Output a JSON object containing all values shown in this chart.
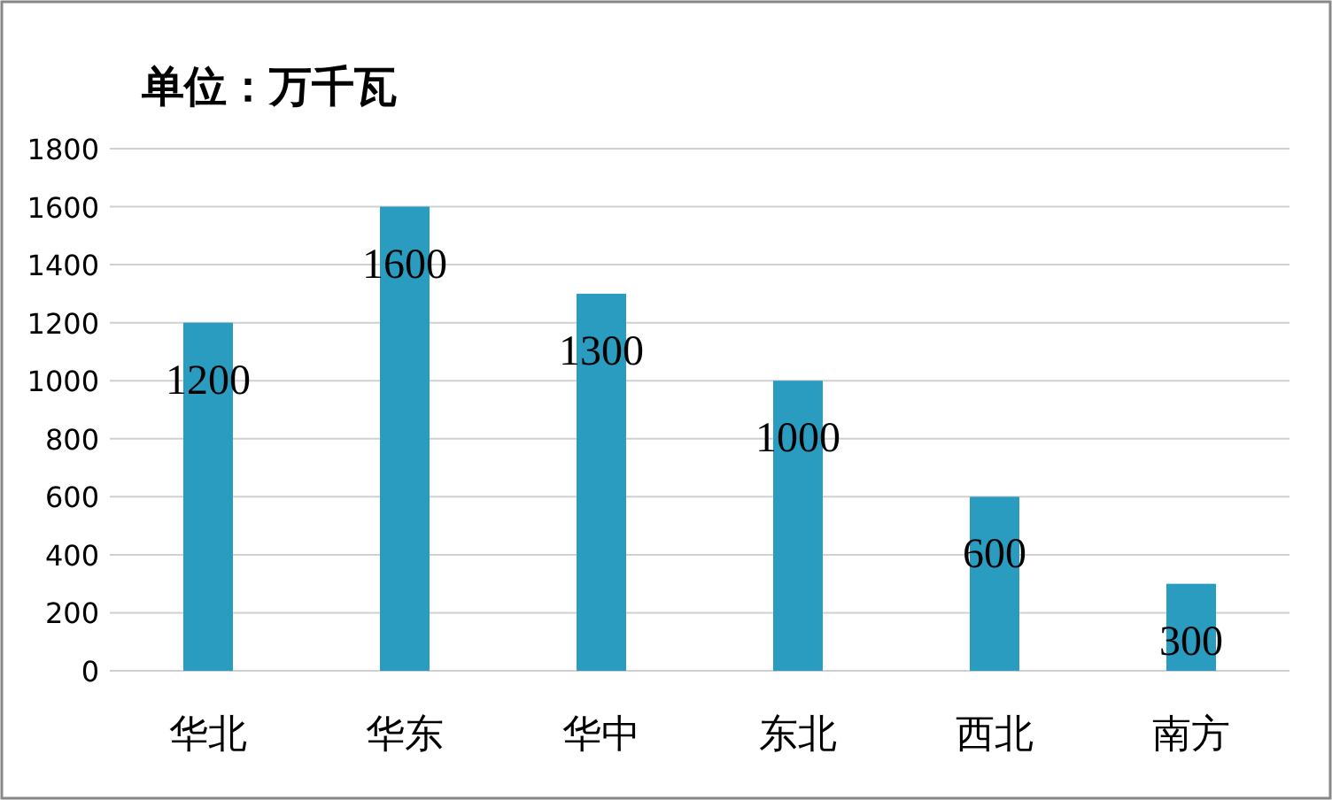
{
  "chart_data": {
    "type": "bar",
    "title": "单位：万千瓦",
    "categories": [
      "华北",
      "华东",
      "华中",
      "东北",
      "西北",
      "南方"
    ],
    "values": [
      1200,
      1600,
      1300,
      1000,
      600,
      300
    ],
    "color": "#2a9cbf",
    "ylim": [
      0,
      1800
    ],
    "yticks": [
      0,
      200,
      400,
      600,
      800,
      1000,
      1200,
      1400,
      1600,
      1800
    ],
    "grid": "y",
    "data_labels": true
  }
}
